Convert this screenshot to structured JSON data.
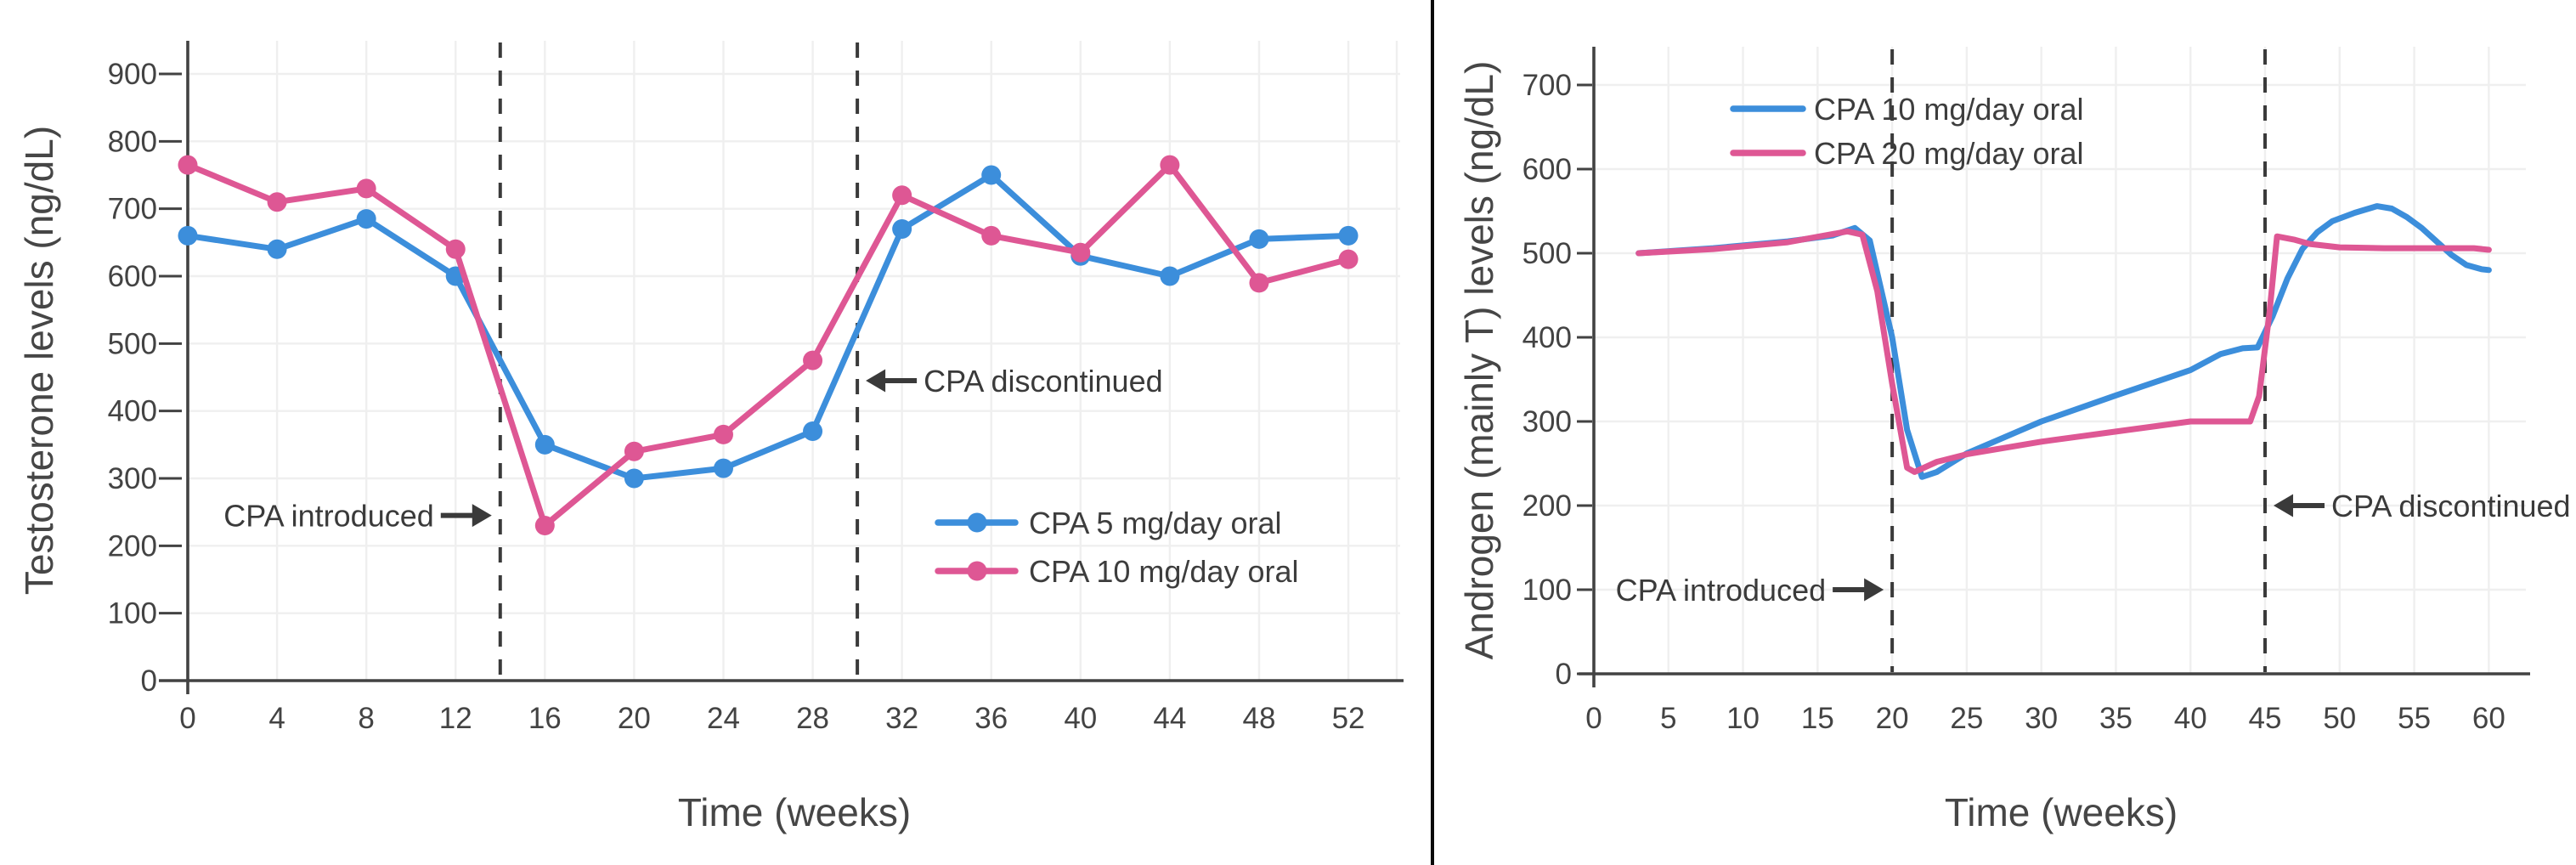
{
  "figure": {
    "background": "#FFFFFF",
    "divider_color": "#0A0A0A"
  },
  "colors": {
    "series_blue": "#3C8EDB",
    "series_pink": "#DE5794",
    "axis": "#424242",
    "grid": "#EFEFEF",
    "text": "#434343",
    "annotation": "#3A3A3A"
  },
  "chart_data": [
    {
      "type": "line",
      "title": "",
      "xlabel": "Time (weeks)",
      "ylabel": "Testosterone levels (ng/dL)",
      "xlim": [
        0,
        54.3
      ],
      "ylim": [
        0,
        950
      ],
      "x_ticks": [
        0,
        4,
        8,
        12,
        16,
        20,
        24,
        28,
        32,
        36,
        40,
        44,
        48,
        52
      ],
      "y_ticks": [
        0,
        100,
        200,
        300,
        400,
        500,
        600,
        700,
        800,
        900
      ],
      "grid": true,
      "legend_position": "inside-right-middle",
      "series": [
        {
          "name": "CPA 5 mg/day oral",
          "color_key": "series_blue",
          "marker": "circle",
          "x": [
            0,
            4,
            8,
            12,
            16,
            20,
            24,
            28,
            32,
            36,
            40,
            44,
            48,
            52
          ],
          "y": [
            660,
            640,
            685,
            600,
            350,
            300,
            315,
            370,
            670,
            750,
            630,
            600,
            655,
            660
          ]
        },
        {
          "name": "CPA 10 mg/day oral",
          "color_key": "series_pink",
          "marker": "circle",
          "x": [
            0,
            4,
            8,
            12,
            16,
            20,
            24,
            28,
            32,
            36,
            40,
            44,
            48,
            52
          ],
          "y": [
            765,
            710,
            730,
            640,
            230,
            340,
            365,
            475,
            720,
            660,
            635,
            765,
            590,
            625
          ]
        }
      ],
      "vlines": [
        {
          "x": 14,
          "style": "dashed"
        },
        {
          "x": 30,
          "style": "dashed"
        }
      ],
      "annotations": [
        {
          "text": "CPA introduced",
          "arrow": "right",
          "week": 14,
          "y_value": 245
        },
        {
          "text": "CPA discontinued",
          "arrow": "left",
          "week": 30,
          "y_value": 445
        }
      ]
    },
    {
      "type": "line",
      "title": "",
      "xlabel": "Time (weeks)",
      "ylabel": "Androgen (mainly T) levels (ng/dL)",
      "xlim": [
        0,
        62.5
      ],
      "ylim": [
        0,
        745
      ],
      "x_ticks": [
        0,
        5,
        10,
        15,
        20,
        25,
        30,
        35,
        40,
        45,
        50,
        55,
        60
      ],
      "y_ticks": [
        0,
        100,
        200,
        300,
        400,
        500,
        600,
        700
      ],
      "grid": true,
      "legend_position": "inside-top-left",
      "series": [
        {
          "name": "CPA 10 mg/day oral",
          "color_key": "series_blue",
          "marker": "none",
          "x": [
            3,
            8,
            13,
            16,
            17.5,
            18.5,
            20,
            21,
            22,
            23,
            25,
            30,
            35,
            40,
            42,
            43.5,
            44.5,
            45.5,
            46.5,
            47.5,
            48.5,
            49.5,
            51,
            52.5,
            53.5,
            54.5,
            55.5,
            56.5,
            57.5,
            58.5,
            59.5,
            60
          ],
          "y": [
            500,
            506,
            514,
            521,
            530,
            515,
            400,
            290,
            234,
            240,
            262,
            300,
            331,
            361,
            380,
            387,
            388,
            425,
            470,
            505,
            525,
            538,
            548,
            556,
            553,
            543,
            530,
            514,
            498,
            486,
            481,
            480
          ]
        },
        {
          "name": "CPA 20 mg/day oral",
          "color_key": "series_pink",
          "marker": "none",
          "x": [
            3,
            8,
            13,
            17,
            18,
            19,
            20,
            21,
            21.5,
            23,
            25,
            30,
            35,
            40,
            44,
            44.6,
            45.3,
            45.8,
            47,
            48,
            50,
            53,
            56,
            59,
            60
          ],
          "y": [
            500,
            505,
            513,
            526,
            522,
            455,
            345,
            245,
            240,
            252,
            261,
            276,
            288,
            300,
            300,
            330,
            430,
            520,
            516,
            511,
            507,
            506,
            506,
            506,
            504
          ]
        }
      ],
      "vlines": [
        {
          "x": 20,
          "style": "dashed"
        },
        {
          "x": 45,
          "style": "dashed"
        }
      ],
      "annotations": [
        {
          "text": "CPA introduced",
          "arrow": "right",
          "week": 20,
          "y_value": 100
        },
        {
          "text": "CPA discontinued",
          "arrow": "left",
          "week": 45,
          "y_value": 200
        }
      ]
    }
  ]
}
